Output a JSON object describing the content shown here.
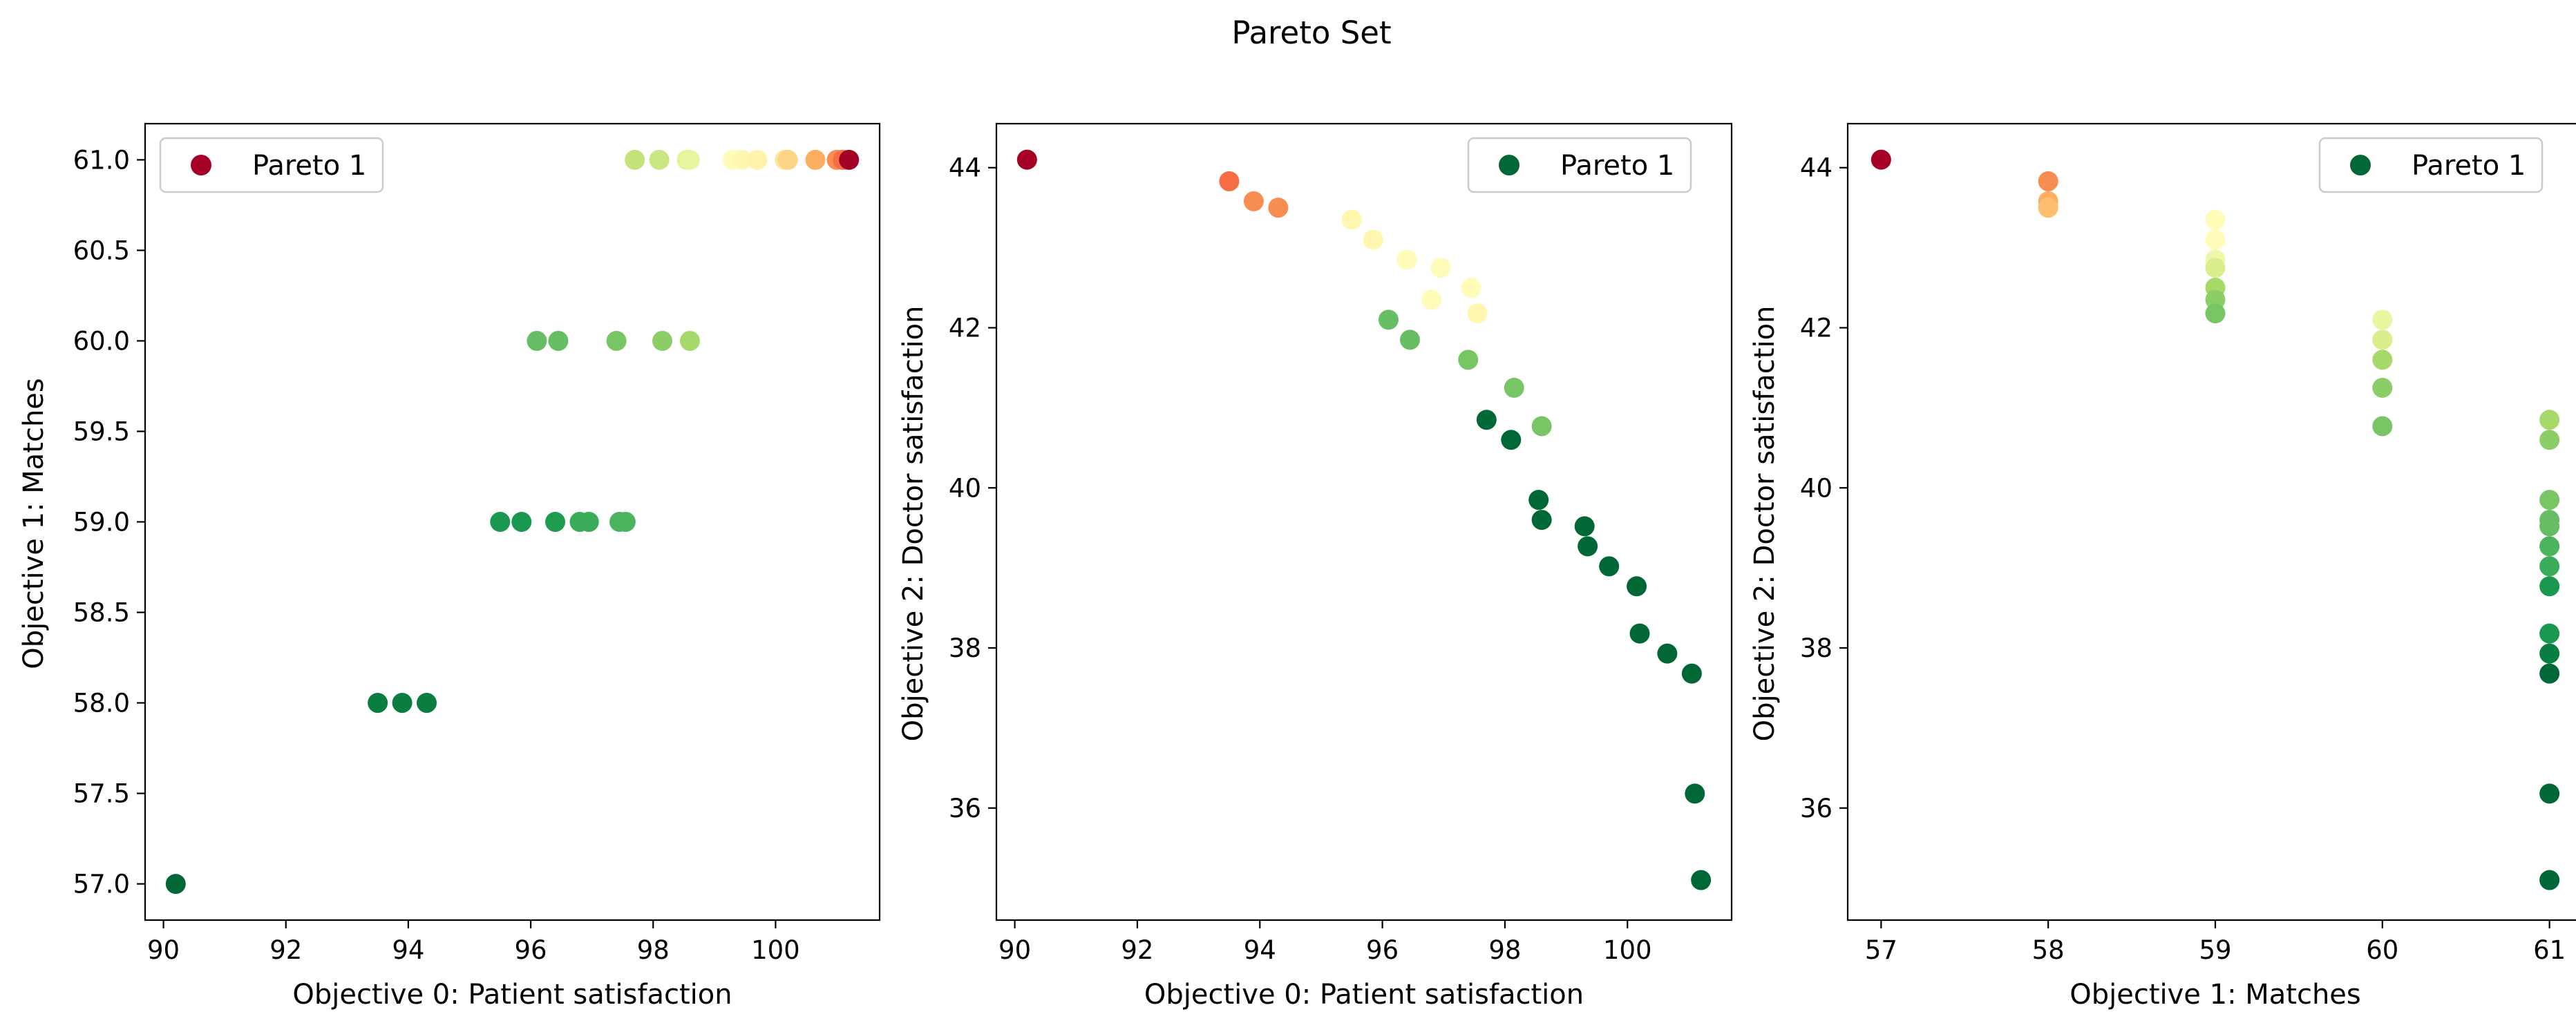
{
  "figure": {
    "title": "Pareto Set"
  },
  "chart_data": [
    {
      "type": "scatter",
      "xlabel": "Objective 0: Patient satisfaction",
      "ylabel": "Objective 1: Matches",
      "xlim": [
        89.7,
        101.7
      ],
      "ylim": [
        56.8,
        61.2
      ],
      "xticks": [
        "90",
        "92",
        "94",
        "96",
        "98",
        "100"
      ],
      "yticks": [
        "57.0",
        "57.5",
        "58.0",
        "58.5",
        "59.0",
        "59.5",
        "60.0",
        "60.5",
        "61.0"
      ],
      "legend": {
        "label": "Pareto 1",
        "location": "upper left",
        "marker_color": "#a50026"
      },
      "points": [
        {
          "x": 90.2,
          "y": 57,
          "color": "#006837"
        },
        {
          "x": 93.5,
          "y": 58,
          "color": "#0a7d40"
        },
        {
          "x": 93.9,
          "y": 58,
          "color": "#0a7d40"
        },
        {
          "x": 94.3,
          "y": 58,
          "color": "#0a7d40"
        },
        {
          "x": 95.5,
          "y": 59,
          "color": "#1a9850"
        },
        {
          "x": 95.85,
          "y": 59,
          "color": "#1a9850"
        },
        {
          "x": 96.4,
          "y": 59,
          "color": "#1f9d4e"
        },
        {
          "x": 96.8,
          "y": 59,
          "color": "#3aab58"
        },
        {
          "x": 96.95,
          "y": 59,
          "color": "#3aab58"
        },
        {
          "x": 97.45,
          "y": 59,
          "color": "#4cb35e"
        },
        {
          "x": 97.55,
          "y": 59,
          "color": "#4cb35e"
        },
        {
          "x": 96.1,
          "y": 60,
          "color": "#66bd63"
        },
        {
          "x": 96.45,
          "y": 60,
          "color": "#66bd63"
        },
        {
          "x": 97.4,
          "y": 60,
          "color": "#78c565"
        },
        {
          "x": 98.15,
          "y": 60,
          "color": "#8ccd67"
        },
        {
          "x": 98.6,
          "y": 60,
          "color": "#a6d96a"
        },
        {
          "x": 97.7,
          "y": 61,
          "color": "#c1e37a"
        },
        {
          "x": 98.1,
          "y": 61,
          "color": "#c9e683"
        },
        {
          "x": 98.55,
          "y": 61,
          "color": "#e3f29a"
        },
        {
          "x": 98.6,
          "y": 61,
          "color": "#eaf59f"
        },
        {
          "x": 99.3,
          "y": 61,
          "color": "#fffbb8"
        },
        {
          "x": 99.45,
          "y": 61,
          "color": "#fff6b0"
        },
        {
          "x": 99.7,
          "y": 61,
          "color": "#fff2aa"
        },
        {
          "x": 100.15,
          "y": 61,
          "color": "#fee79b"
        },
        {
          "x": 100.2,
          "y": 61,
          "color": "#fdd486"
        },
        {
          "x": 100.65,
          "y": 61,
          "color": "#fdae61"
        },
        {
          "x": 101.0,
          "y": 61,
          "color": "#f88d52"
        },
        {
          "x": 101.1,
          "y": 61,
          "color": "#f46d43"
        },
        {
          "x": 101.2,
          "y": 61,
          "color": "#a50026"
        }
      ]
    },
    {
      "type": "scatter",
      "xlabel": "Objective 0: Patient satisfaction",
      "ylabel": "Objective 2: Doctor satisfaction",
      "xlim": [
        89.7,
        101.7
      ],
      "ylim": [
        34.6,
        44.55
      ],
      "xticks": [
        "90",
        "92",
        "94",
        "96",
        "98",
        "100"
      ],
      "yticks": [
        "36",
        "38",
        "40",
        "42",
        "44"
      ],
      "legend": {
        "label": "Pareto 1",
        "location": "upper right",
        "marker_color": "#006837"
      },
      "points": [
        {
          "x": 90.2,
          "y": 44.1,
          "color": "#a50026"
        },
        {
          "x": 93.5,
          "y": 43.83,
          "color": "#f46d43"
        },
        {
          "x": 93.9,
          "y": 43.58,
          "color": "#f88d52"
        },
        {
          "x": 94.3,
          "y": 43.5,
          "color": "#f88d52"
        },
        {
          "x": 95.5,
          "y": 43.35,
          "color": "#fff6b0"
        },
        {
          "x": 95.85,
          "y": 43.1,
          "color": "#fff6b0"
        },
        {
          "x": 96.4,
          "y": 42.85,
          "color": "#fffbb8"
        },
        {
          "x": 96.95,
          "y": 42.75,
          "color": "#fffbb8"
        },
        {
          "x": 96.8,
          "y": 42.35,
          "color": "#fffbb8"
        },
        {
          "x": 97.45,
          "y": 42.5,
          "color": "#fffbb8"
        },
        {
          "x": 97.55,
          "y": 42.18,
          "color": "#fff6b0"
        },
        {
          "x": 96.1,
          "y": 42.1,
          "color": "#66bd63"
        },
        {
          "x": 96.45,
          "y": 41.85,
          "color": "#66bd63"
        },
        {
          "x": 97.4,
          "y": 41.6,
          "color": "#78c565"
        },
        {
          "x": 98.15,
          "y": 41.25,
          "color": "#78c565"
        },
        {
          "x": 98.6,
          "y": 40.77,
          "color": "#78c565"
        },
        {
          "x": 97.7,
          "y": 40.85,
          "color": "#006837"
        },
        {
          "x": 98.1,
          "y": 40.6,
          "color": "#006837"
        },
        {
          "x": 98.55,
          "y": 39.85,
          "color": "#006837"
        },
        {
          "x": 98.6,
          "y": 39.6,
          "color": "#006837"
        },
        {
          "x": 99.3,
          "y": 39.52,
          "color": "#006837"
        },
        {
          "x": 99.35,
          "y": 39.27,
          "color": "#006837"
        },
        {
          "x": 99.7,
          "y": 39.02,
          "color": "#006837"
        },
        {
          "x": 100.15,
          "y": 38.77,
          "color": "#006837"
        },
        {
          "x": 100.2,
          "y": 38.18,
          "color": "#006837"
        },
        {
          "x": 100.65,
          "y": 37.93,
          "color": "#006837"
        },
        {
          "x": 101.05,
          "y": 37.68,
          "color": "#006837"
        },
        {
          "x": 101.1,
          "y": 36.18,
          "color": "#006837"
        },
        {
          "x": 101.2,
          "y": 35.1,
          "color": "#006837"
        }
      ]
    },
    {
      "type": "scatter",
      "xlabel": "Objective 1: Matches",
      "ylabel": "Objective 2: Doctor satisfaction",
      "xlim": [
        56.8,
        61.2
      ],
      "ylim": [
        34.6,
        44.55
      ],
      "xticks": [
        "57",
        "58",
        "59",
        "60",
        "61"
      ],
      "yticks": [
        "36",
        "38",
        "40",
        "42",
        "44"
      ],
      "legend": {
        "label": "Pareto 1",
        "location": "upper right",
        "marker_color": "#006837"
      },
      "points": [
        {
          "x": 57,
          "y": 44.1,
          "color": "#a50026"
        },
        {
          "x": 58,
          "y": 43.83,
          "color": "#f88d52"
        },
        {
          "x": 58,
          "y": 43.58,
          "color": "#fdae61"
        },
        {
          "x": 58,
          "y": 43.5,
          "color": "#fdbf6f"
        },
        {
          "x": 59,
          "y": 43.35,
          "color": "#fffbb8"
        },
        {
          "x": 59,
          "y": 43.1,
          "color": "#fffbb8"
        },
        {
          "x": 59,
          "y": 42.85,
          "color": "#f1f7a8"
        },
        {
          "x": 59,
          "y": 42.75,
          "color": "#d9ef8b"
        },
        {
          "x": 59,
          "y": 42.5,
          "color": "#a6d96a"
        },
        {
          "x": 59,
          "y": 42.35,
          "color": "#8ccd67"
        },
        {
          "x": 59,
          "y": 42.18,
          "color": "#78c565"
        },
        {
          "x": 60,
          "y": 42.1,
          "color": "#eaf59f"
        },
        {
          "x": 60,
          "y": 41.85,
          "color": "#d9ef8b"
        },
        {
          "x": 60,
          "y": 41.6,
          "color": "#a6d96a"
        },
        {
          "x": 60,
          "y": 41.25,
          "color": "#8ccd67"
        },
        {
          "x": 60,
          "y": 40.77,
          "color": "#78c565"
        },
        {
          "x": 61,
          "y": 40.85,
          "color": "#a6d96a"
        },
        {
          "x": 61,
          "y": 40.6,
          "color": "#8ccd67"
        },
        {
          "x": 61,
          "y": 39.85,
          "color": "#78c565"
        },
        {
          "x": 61,
          "y": 39.6,
          "color": "#66bd63"
        },
        {
          "x": 61,
          "y": 39.52,
          "color": "#66bd63"
        },
        {
          "x": 61,
          "y": 39.27,
          "color": "#4cb35e"
        },
        {
          "x": 61,
          "y": 39.02,
          "color": "#3aab58"
        },
        {
          "x": 61,
          "y": 38.77,
          "color": "#1a9850"
        },
        {
          "x": 61,
          "y": 38.18,
          "color": "#1a9850"
        },
        {
          "x": 61,
          "y": 37.93,
          "color": "#0a7d40"
        },
        {
          "x": 61,
          "y": 37.68,
          "color": "#006837"
        },
        {
          "x": 61,
          "y": 36.18,
          "color": "#006837"
        },
        {
          "x": 61,
          "y": 35.1,
          "color": "#006837"
        }
      ]
    }
  ]
}
